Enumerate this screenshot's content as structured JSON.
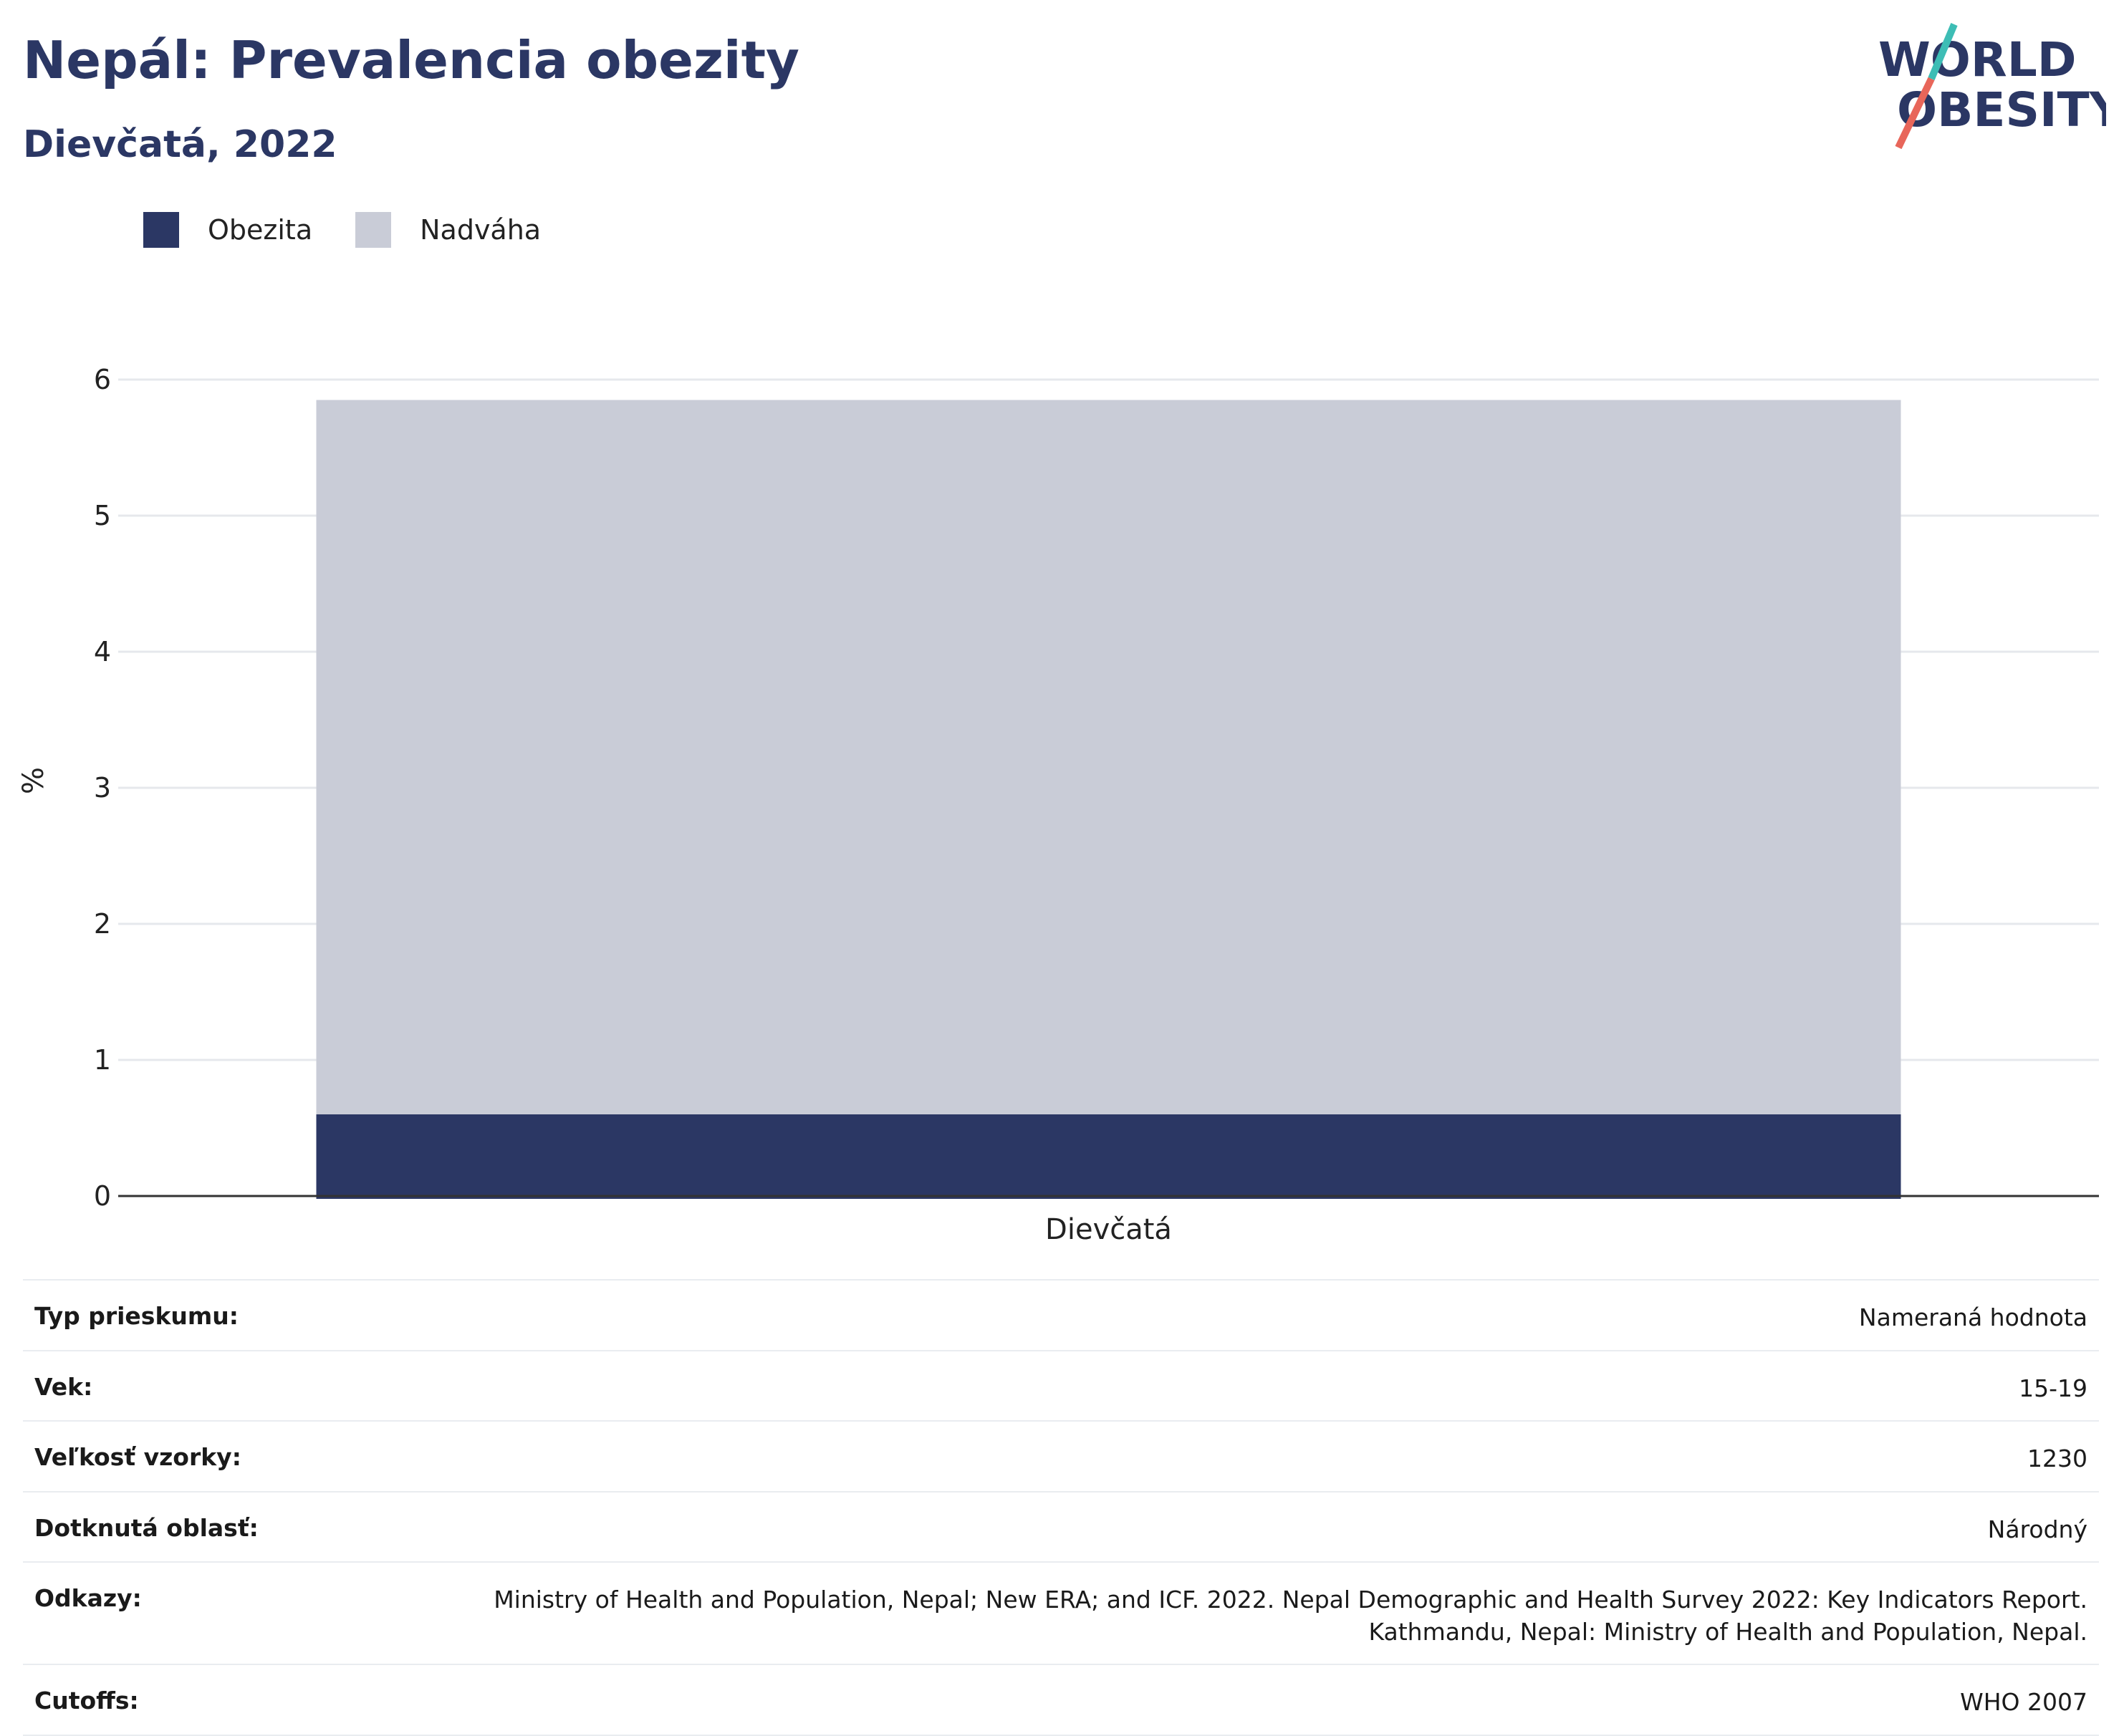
{
  "header": {
    "title": "Nepál: Prevalencia obezity",
    "subtitle": "Dievčatá, 2022"
  },
  "logo": {
    "line1": "WORLD",
    "line2": "OBESITY",
    "colors": {
      "text": "#2b3764",
      "slash_teal": "#3dbdb5",
      "slash_red": "#e8665a"
    }
  },
  "colors": {
    "obesity": "#2b3764",
    "overweight": "#c9ccd7",
    "grid": "#e6e8ec",
    "axis": "#333333"
  },
  "chart_data": {
    "type": "bar",
    "stacked": true,
    "title": "Nepál: Prevalencia obezity",
    "subtitle": "Dievčatá, 2022",
    "categories": [
      "Dievčatá"
    ],
    "series": [
      {
        "name": "Obezita",
        "values": [
          0.6
        ],
        "color": "#2b3764"
      },
      {
        "name": "Nadváha",
        "values": [
          5.25
        ],
        "color": "#c9ccd7"
      }
    ],
    "xlabel": "",
    "ylabel": "%",
    "ylim": [
      0,
      6
    ],
    "yticks": [
      0,
      1,
      2,
      3,
      4,
      5,
      6
    ],
    "grid": true,
    "legend": "top-left"
  },
  "info": [
    {
      "label": "Typ prieskumu:",
      "value": "Nameraná hodnota"
    },
    {
      "label": "Vek:",
      "value": "15-19"
    },
    {
      "label": "Veľkosť vzorky:",
      "value": "1230"
    },
    {
      "label": "Dotknutá oblasť:",
      "value": "Národný"
    },
    {
      "label": "Odkazy:",
      "value": "Ministry of Health and Population, Nepal; New ERA; and ICF. 2022. Nepal Demographic and Health Survey 2022: Key Indicators Report. Kathmandu, Nepal: Ministry of Health and Population, Nepal."
    },
    {
      "label": "Cutoffs:",
      "value": "WHO 2007"
    }
  ]
}
